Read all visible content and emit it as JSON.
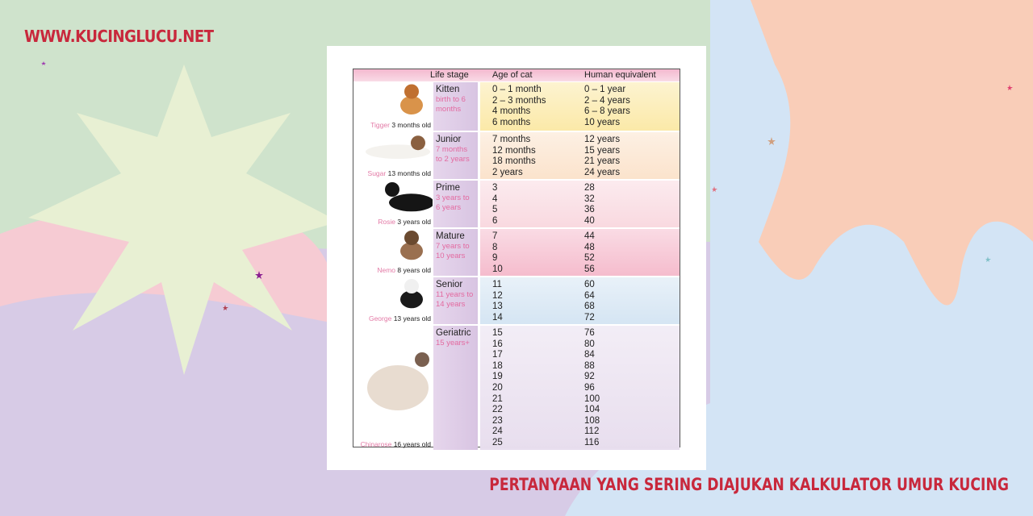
{
  "site": "WWW.KUCINGLUCU.NET",
  "caption": "PERTANYAAN YANG SERING DIAJUKAN KALKULATOR UMUR KUCING",
  "colors": {
    "accent": "#c8283c",
    "green": "#cfe3cc",
    "peach": "#f9cdb8",
    "lavender": "#d7cbe6",
    "blue": "#d3e4f5"
  },
  "table": {
    "headers": [
      "Life stage",
      "Age of cat",
      "Human equivalent"
    ],
    "rows": [
      {
        "stage": "Kitten",
        "range": "birth to 6 months",
        "cat_name": "Tigger",
        "cat_age": "3 months old",
        "ages": [
          "0 – 1 month",
          "2 – 3 months",
          "4 months",
          "6 months"
        ],
        "human": [
          "0 – 1 year",
          "2 – 4 years",
          "6 – 8 years",
          "10 years"
        ],
        "bg": "#fbe9a8",
        "icon": "orange-kitten-image"
      },
      {
        "stage": "Junior",
        "range": "7 months to 2 years",
        "cat_name": "Sugar",
        "cat_age": "13 months old",
        "ages": [
          "7 months",
          "12 months",
          "18 months",
          "2 years"
        ],
        "human": [
          "12 years",
          "15 years",
          "21 years",
          "24 years"
        ],
        "bg": "#fbe3cc",
        "icon": "calico-cat-image"
      },
      {
        "stage": "Prime",
        "range": "3 years to 6 years",
        "cat_name": "Rosie",
        "cat_age": "3 years old",
        "ages": [
          "3",
          "4",
          "5",
          "6"
        ],
        "human": [
          "28",
          "32",
          "36",
          "40"
        ],
        "bg": "#f9d9e0",
        "icon": "black-cat-image"
      },
      {
        "stage": "Mature",
        "range": "7 years to 10 years",
        "cat_name": "Nemo",
        "cat_age": "8 years old",
        "ages": [
          "7",
          "8",
          "9",
          "10"
        ],
        "human": [
          "44",
          "48",
          "52",
          "56"
        ],
        "bg": "#f5bccd",
        "icon": "tabby-cat-image"
      },
      {
        "stage": "Senior",
        "range": "11 years to 14 years",
        "cat_name": "George",
        "cat_age": "13 years old",
        "ages": [
          "11",
          "12",
          "13",
          "14"
        ],
        "human": [
          "60",
          "64",
          "68",
          "72"
        ],
        "bg": "#d5e5f3",
        "icon": "tuxedo-cat-image"
      },
      {
        "stage": "Geriatric",
        "range": "15 years+",
        "cat_name": "Chinarose",
        "cat_age": "16 years old",
        "ages": [
          "15",
          "16",
          "17",
          "18",
          "19",
          "20",
          "21",
          "22",
          "23",
          "24",
          "25"
        ],
        "human": [
          "76",
          "80",
          "84",
          "88",
          "92",
          "96",
          "100",
          "104",
          "108",
          "112",
          "116"
        ],
        "bg": "#e8deee",
        "icon": "siamese-cat-image"
      }
    ]
  }
}
